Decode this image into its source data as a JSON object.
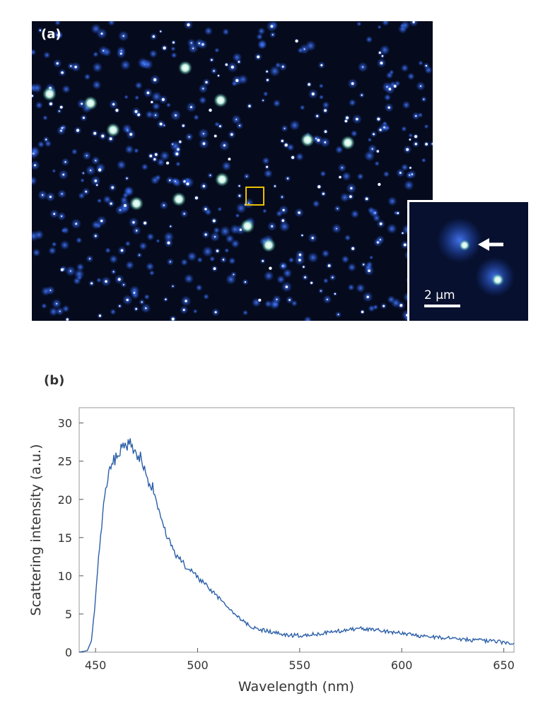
{
  "panel_a": {
    "label": "(a)",
    "inset_scale_label": "2 µm"
  },
  "panel_b": {
    "label": "(b)"
  },
  "colors": {
    "line": "#2b5fa8",
    "selection_box": "#e8c000",
    "image_background": "#050a1c",
    "particle": "#1e4fd0",
    "bright_particle": "#c8f5e8"
  },
  "chart_data": {
    "type": "line",
    "title": "",
    "xlabel": "Wavelength (nm)",
    "ylabel": "Scattering intensity (a.u.)",
    "xlim": [
      442,
      655
    ],
    "ylim": [
      0,
      32
    ],
    "xticks": [
      450,
      500,
      550,
      600,
      650
    ],
    "yticks": [
      0,
      5,
      10,
      15,
      20,
      25,
      30
    ],
    "grid": false,
    "legend": "none",
    "series": [
      {
        "x": [
          442,
          446,
          448,
          450,
          452,
          454,
          456,
          458,
          460,
          462,
          464,
          466,
          468,
          470,
          472,
          474,
          476,
          478,
          480,
          482,
          484,
          486,
          488,
          490,
          495,
          500,
          505,
          510,
          515,
          520,
          525,
          530,
          535,
          540,
          545,
          550,
          555,
          560,
          565,
          570,
          575,
          580,
          585,
          590,
          595,
          600,
          605,
          610,
          615,
          620,
          625,
          630,
          635,
          640,
          645,
          650,
          655
        ],
        "y": [
          0,
          0.2,
          1.5,
          7,
          14,
          19.5,
          23,
          24.5,
          25.5,
          26.5,
          27.5,
          27.2,
          27,
          25.5,
          25.8,
          24,
          22,
          21.5,
          19,
          17.5,
          16,
          14.5,
          13.5,
          12.5,
          11,
          9.8,
          8.5,
          7.2,
          5.8,
          4.5,
          3.5,
          3,
          2.7,
          2.4,
          2.2,
          2.2,
          2.3,
          2.4,
          2.6,
          2.8,
          3,
          3.1,
          3,
          2.8,
          2.6,
          2.5,
          2.3,
          2.1,
          2,
          1.9,
          1.8,
          1.7,
          1.6,
          1.5,
          1.4,
          1.3,
          1.2
        ]
      }
    ]
  }
}
